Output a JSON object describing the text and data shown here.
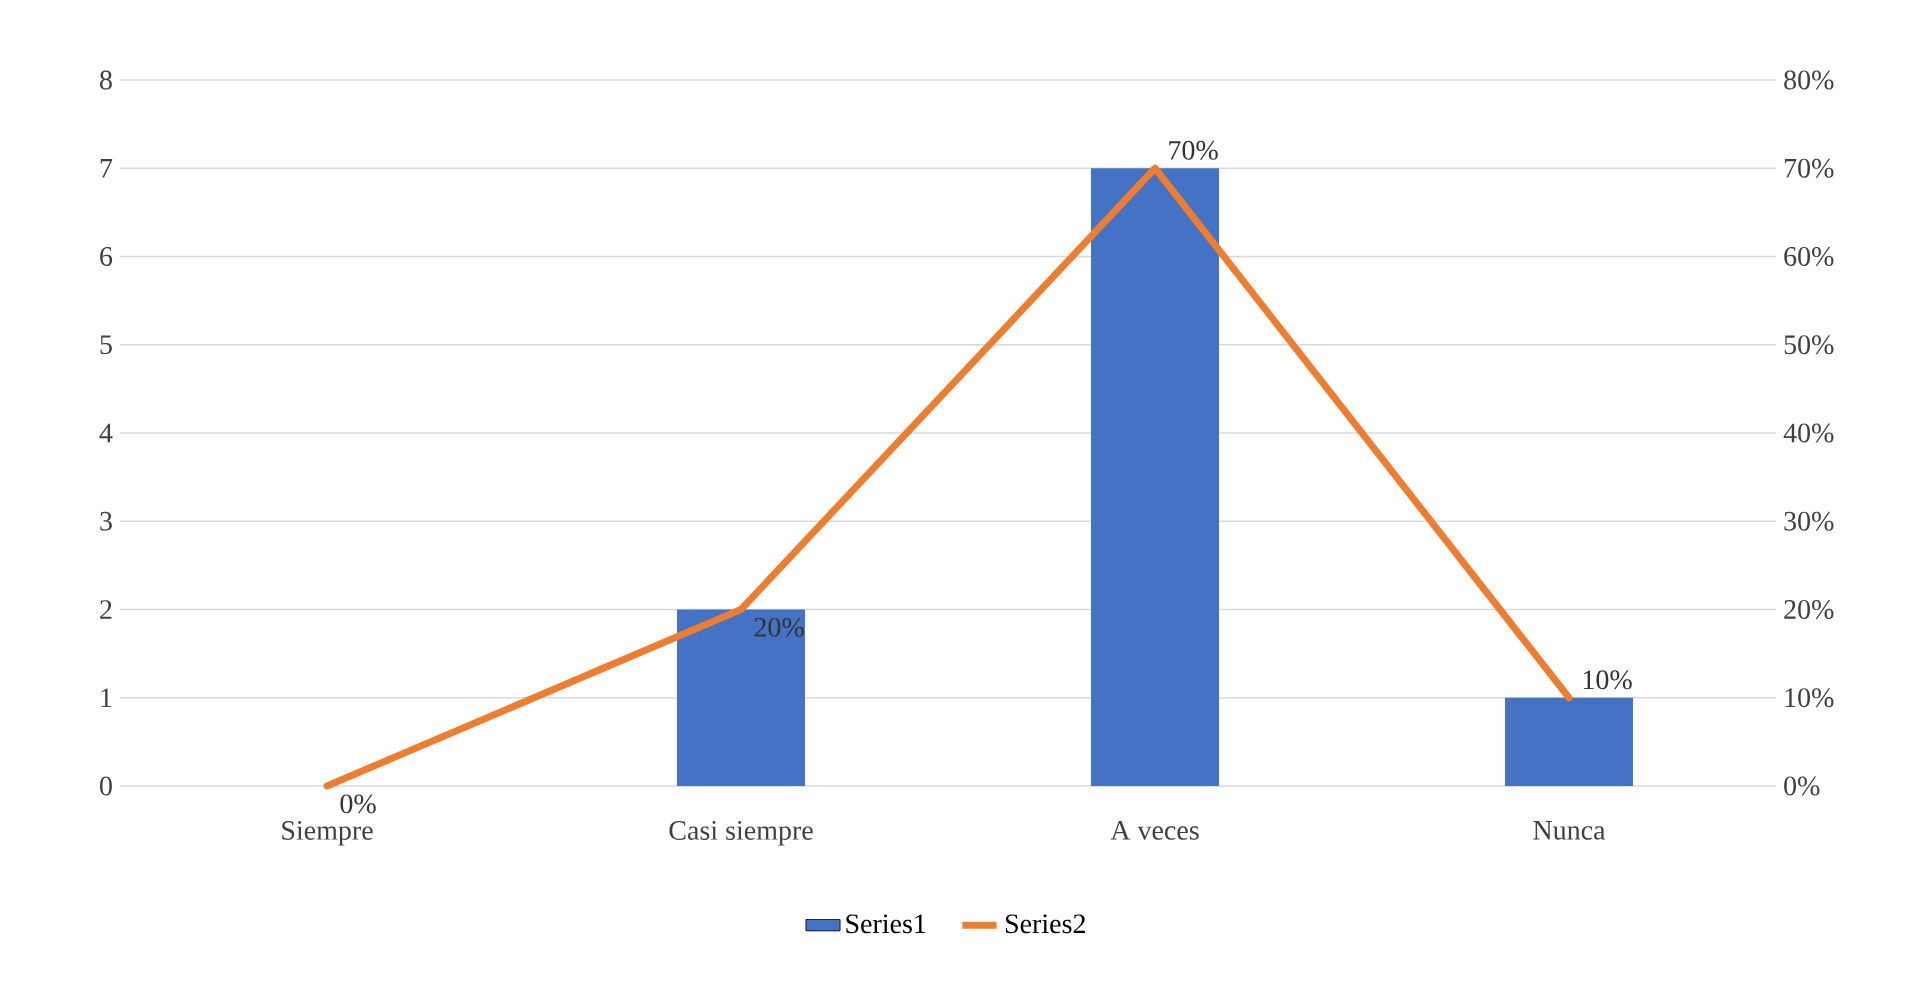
{
  "chart_data": {
    "type": "bar",
    "categories": [
      "Siempre",
      "Casi siempre",
      "A veces",
      "Nunca"
    ],
    "series": [
      {
        "name": "Series1",
        "color": "#4472c4",
        "values": [
          0,
          2,
          7,
          1
        ]
      },
      {
        "name": "Series2",
        "type": "line",
        "axis": "y2",
        "color": "#ed7d31",
        "values": [
          0,
          20,
          70,
          10
        ],
        "value_labels": [
          "0%",
          "20%",
          "70%",
          "10%"
        ]
      }
    ],
    "ylim": [
      0,
      8
    ],
    "yticks": [
      0,
      1,
      2,
      3,
      4,
      5,
      6,
      7,
      8
    ],
    "y2lim": [
      0,
      80
    ],
    "y2ticks": [
      {
        "value": 0,
        "label": "0%"
      },
      {
        "value": 10,
        "label": "10%"
      },
      {
        "value": 20,
        "label": "20%"
      },
      {
        "value": 30,
        "label": "30%"
      },
      {
        "value": 40,
        "label": "40%"
      },
      {
        "value": 50,
        "label": "50%"
      },
      {
        "value": 60,
        "label": "60%"
      },
      {
        "value": 70,
        "label": "70%"
      },
      {
        "value": 80,
        "label": "80%"
      }
    ],
    "grid": "y",
    "legend": "bottom"
  }
}
